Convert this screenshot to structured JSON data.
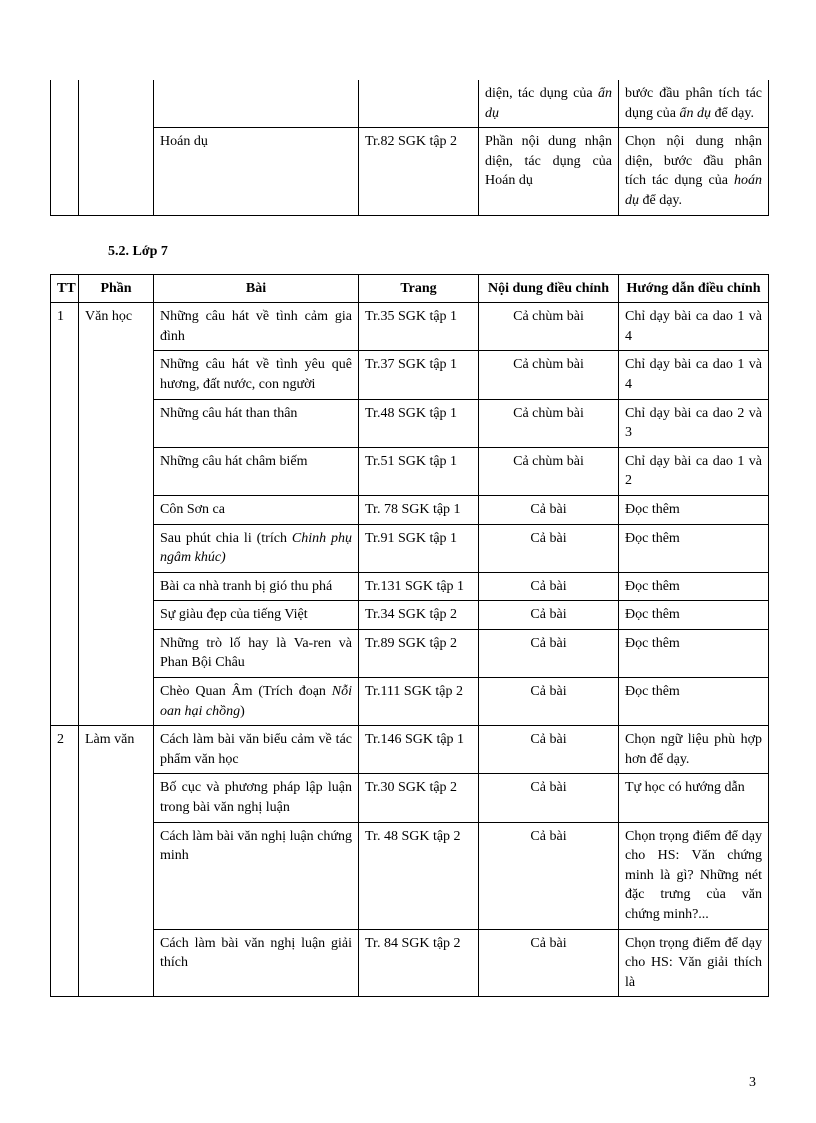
{
  "table1": {
    "rows": [
      {
        "c1": "",
        "c2": "",
        "c3": "",
        "c4": "",
        "c5_parts": [
          "diện, tác dụng của ",
          "ẩn dụ"
        ],
        "c6_parts": [
          "bước đầu phân tích tác dụng của ",
          "ẩn dụ",
          " để dạy."
        ]
      },
      {
        "c1": "",
        "c2": "",
        "c3": "Hoán dụ",
        "c4": "Tr.82 SGK tập 2",
        "c5_parts": [
          "Phần nội dung nhận diện, tác dụng của Hoán dụ"
        ],
        "c6_parts": [
          "Chọn nội dung nhận diện, bước đầu phân tích tác dụng của ",
          "hoán dụ",
          " để dạy."
        ]
      }
    ]
  },
  "section_title": "5.2. Lớp 7",
  "table2": {
    "headers": [
      "TT",
      "Phần",
      "Bài",
      "Trang",
      "Nội dung điều chỉnh",
      "Hướng dẫn điều chỉnh"
    ],
    "rows": [
      {
        "tt": "1",
        "phan": "Văn học",
        "bai": "Những câu hát về tình cảm gia đình",
        "trang": "Tr.35 SGK tập 1",
        "nd": "Cả chùm bài",
        "hd": "Chỉ dạy bài ca dao 1 và 4"
      },
      {
        "tt": "",
        "phan": "",
        "bai": "Những câu hát về tình yêu quê hương, đất nước, con người",
        "trang": "Tr.37 SGK tập 1",
        "nd": "Cả chùm bài",
        "hd": "Chỉ dạy bài ca dao 1 và 4"
      },
      {
        "tt": "",
        "phan": "",
        "bai": "Những câu hát than thân",
        "trang": "Tr.48 SGK tập 1",
        "nd": "Cả chùm bài",
        "hd": "Chỉ dạy bài ca dao 2 và 3"
      },
      {
        "tt": "",
        "phan": "",
        "bai": "Những câu hát châm biếm",
        "trang": "Tr.51 SGK tập 1",
        "nd": "Cả chùm bài",
        "hd": "Chỉ dạy bài ca dao 1 và 2"
      },
      {
        "tt": "",
        "phan": "",
        "bai": "Côn Sơn ca",
        "trang": "Tr. 78 SGK tập 1",
        "nd": "Cả bài",
        "hd": "Đọc thêm"
      },
      {
        "tt": "",
        "phan": "",
        "bai_parts": [
          "Sau phút chia li (trích ",
          "Chinh phụ ngâm khúc)"
        ],
        "trang": "Tr.91 SGK tập 1",
        "nd": "Cả bài",
        "hd": "Đọc thêm"
      },
      {
        "tt": "",
        "phan": "",
        "bai": "Bài ca nhà tranh bị gió thu phá",
        "trang": "Tr.131 SGK tập 1",
        "nd": "Cả bài",
        "hd": "Đọc thêm"
      },
      {
        "tt": "",
        "phan": "",
        "bai": "Sự giàu đẹp của tiếng Việt",
        "trang": "Tr.34 SGK tập 2",
        "nd": "Cả bài",
        "hd": "Đọc thêm"
      },
      {
        "tt": "",
        "phan": "",
        "bai": "Những trò lố hay là Va-ren và Phan Bội Châu",
        "trang": "Tr.89 SGK tập 2",
        "nd": "Cả bài",
        "hd": "Đọc thêm"
      },
      {
        "tt": "",
        "phan": "",
        "bai_parts": [
          "Chèo Quan Âm (Trích đoạn ",
          "Nỗi oan hại chồng",
          ")"
        ],
        "trang": "Tr.111 SGK tập 2",
        "nd": "Cả bài",
        "hd": "Đọc thêm"
      },
      {
        "tt": "2",
        "phan": "Làm văn",
        "bai": "Cách làm bài văn biểu cảm về tác phẩm văn học",
        "trang": "Tr.146 SGK tập 1",
        "nd": "Cả bài",
        "hd": "Chọn ngữ liệu phù hợp hơn để dạy."
      },
      {
        "tt": "",
        "phan": "",
        "bai": "Bố cục và phương pháp lập luận trong bài văn nghị luận",
        "trang": "Tr.30 SGK tập 2",
        "nd": "Cả bài",
        "hd": "Tự học có hướng dẫn"
      },
      {
        "tt": "",
        "phan": "",
        "bai": "Cách làm bài văn nghị luận chứng minh",
        "trang": "Tr. 48 SGK tập 2",
        "nd": "Cả bài",
        "hd": "Chọn trọng điểm để dạy cho HS: Văn chứng minh là gì? Những nét đặc trưng của văn chứng minh?..."
      },
      {
        "tt": "",
        "phan": "",
        "bai": "Cách làm bài văn nghị luận giải thích",
        "trang": "Tr. 84 SGK tập 2",
        "nd": "Cả bài",
        "hd": "Chọn trọng điểm để dạy cho HS: Văn giải thích là"
      }
    ]
  },
  "page_number": "3"
}
